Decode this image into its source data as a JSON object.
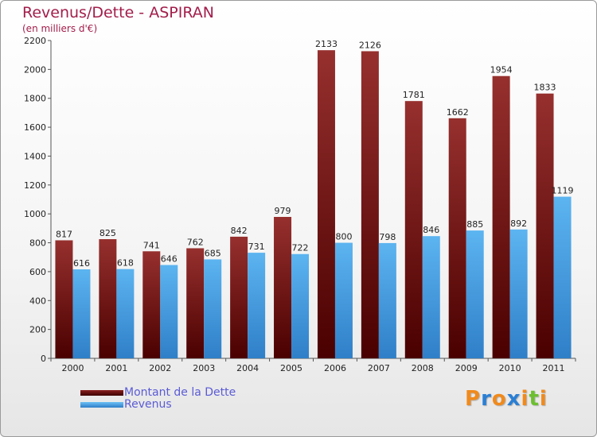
{
  "header": {
    "title": "Revenus/Dette - ASPIRAN",
    "subtitle": "(en milliers d'€)"
  },
  "legend": {
    "items": [
      {
        "label": "Montant de la Dette",
        "color": "#6b0f0f"
      },
      {
        "label": "Revenus",
        "color": "#4aa3e6"
      }
    ]
  },
  "logo": {
    "letters": [
      {
        "char": "P",
        "color": "#f08a1c"
      },
      {
        "char": "r",
        "color": "#2a7fd4"
      },
      {
        "char": "o",
        "color": "#f08a1c"
      },
      {
        "char": "x",
        "color": "#2a7fd4"
      },
      {
        "char": "i",
        "color": "#f08a1c"
      },
      {
        "char": "t",
        "color": "#6cbf2f"
      },
      {
        "char": "i",
        "color": "#f08a1c"
      }
    ]
  },
  "chart_data": {
    "type": "bar",
    "categories": [
      "2000",
      "2001",
      "2002",
      "2003",
      "2004",
      "2005",
      "2006",
      "2007",
      "2008",
      "2009",
      "2010",
      "2011"
    ],
    "series": [
      {
        "name": "Montant de la Dette",
        "color": "#7a1a1a",
        "values": [
          817,
          825,
          741,
          762,
          842,
          979,
          2133,
          2126,
          1781,
          1662,
          1954,
          1833
        ]
      },
      {
        "name": "Revenus",
        "color": "#4aa3e6",
        "values": [
          616,
          618,
          646,
          685,
          731,
          722,
          800,
          798,
          846,
          885,
          892,
          1119
        ]
      }
    ],
    "ylim": [
      0,
      2200
    ],
    "yticks": [
      0,
      200,
      400,
      600,
      800,
      1000,
      1200,
      1400,
      1600,
      1800,
      2000,
      2200
    ],
    "grid": false,
    "legend_position": "bottom-left"
  }
}
